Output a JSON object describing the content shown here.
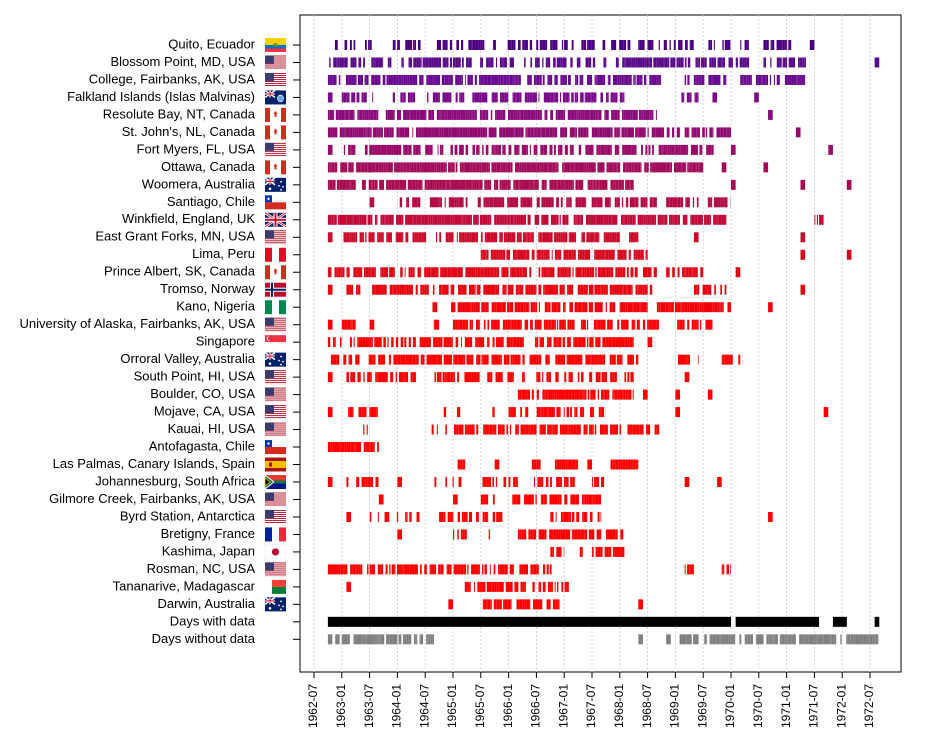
{
  "chart_data": {
    "type": "timeline",
    "xlabel": "",
    "ylabel": "",
    "x_ticks": [
      "1962-07",
      "1963-01",
      "1963-07",
      "1964-01",
      "1964-07",
      "1965-01",
      "1965-07",
      "1966-01",
      "1966-07",
      "1967-01",
      "1967-07",
      "1968-01",
      "1968-07",
      "1969-01",
      "1969-07",
      "1970-01",
      "1970-07",
      "1971-01",
      "1971-07",
      "1972-01",
      "1972-07"
    ],
    "xlim": [
      "1962-04",
      "1972-10"
    ],
    "grid": "vertical dashed",
    "rows": [
      {
        "name": "Quito, Ecuador",
        "flag": "ecuador",
        "color": "#4b0082",
        "segments": [
          [
            "1962-10",
            "1963-01"
          ],
          [
            "1963-01",
            "1963-04"
          ],
          [
            "1963-06",
            "1963-08"
          ],
          [
            "1963-12",
            "1964-02"
          ],
          [
            "1964-02",
            "1964-06"
          ],
          [
            "1964-09",
            "1968-06"
          ],
          [
            "1968-06",
            "1969-05"
          ],
          [
            "1969-05",
            "1970-01"
          ],
          [
            "1970-03",
            "1970-05"
          ],
          [
            "1970-08",
            "1971-02"
          ],
          [
            "1971-06",
            "1971-07"
          ]
        ],
        "density": 0.55
      },
      {
        "name": "Blossom Point, MD, USA",
        "flag": "usa",
        "color": "#5a0a8a",
        "segments": [
          [
            "1962-10",
            "1963-06"
          ],
          [
            "1963-06",
            "1964-07"
          ],
          [
            "1964-07",
            "1965-01"
          ],
          [
            "1965-01",
            "1967-08"
          ],
          [
            "1967-08",
            "1968-03"
          ],
          [
            "1968-03",
            "1969-08"
          ],
          [
            "1969-08",
            "1970-05"
          ],
          [
            "1970-08",
            "1971-06"
          ],
          [
            "1972-08",
            "1972-09"
          ]
        ],
        "density": 0.65
      },
      {
        "name": "College, Fairbanks, AK, USA",
        "flag": "usa",
        "color": "#6a0a90",
        "segments": [
          [
            "1962-10",
            "1968-01"
          ],
          [
            "1968-01",
            "1968-10"
          ],
          [
            "1969-03",
            "1969-12"
          ],
          [
            "1970-03",
            "1971-05"
          ]
        ],
        "density": 0.8
      },
      {
        "name": "Falkland Islands (Islas Malvinas)",
        "flag": "falklands",
        "color": "#7a0a8a",
        "segments": [
          [
            "1962-10",
            "1962-11"
          ],
          [
            "1963-01",
            "1963-09"
          ],
          [
            "1963-12",
            "1964-06"
          ],
          [
            "1964-07",
            "1965-01"
          ],
          [
            "1965-01",
            "1968-02"
          ],
          [
            "1969-01",
            "1969-06"
          ],
          [
            "1969-09",
            "1969-10"
          ],
          [
            "1970-06",
            "1970-07"
          ]
        ],
        "density": 0.7
      },
      {
        "name": "Resolute Bay, NT, Canada",
        "flag": "canada",
        "color": "#8a0a7a",
        "segments": [
          [
            "1962-10",
            "1968-09"
          ],
          [
            "1970-09",
            "1970-10"
          ]
        ],
        "density": 0.85
      },
      {
        "name": "St. John's, NL, Canada",
        "flag": "canada",
        "color": "#900a70",
        "segments": [
          [
            "1962-10",
            "1969-02"
          ],
          [
            "1969-03",
            "1970-01"
          ],
          [
            "1971-03",
            "1971-04"
          ]
        ],
        "density": 0.85
      },
      {
        "name": "Fort Myers, FL, USA",
        "flag": "usa",
        "color": "#9a0a68",
        "segments": [
          [
            "1962-10",
            "1962-11"
          ],
          [
            "1963-01",
            "1963-04"
          ],
          [
            "1963-06",
            "1964-06"
          ],
          [
            "1964-07",
            "1965-01"
          ],
          [
            "1965-01",
            "1968-08"
          ],
          [
            "1968-08",
            "1969-10"
          ],
          [
            "1970-01",
            "1970-02"
          ],
          [
            "1971-10",
            "1971-11"
          ]
        ],
        "density": 0.75
      },
      {
        "name": "Ottawa, Canada",
        "flag": "canada",
        "color": "#a20a5a",
        "segments": [
          [
            "1962-10",
            "1969-07"
          ],
          [
            "1969-11",
            "1969-12"
          ],
          [
            "1970-08",
            "1970-09"
          ]
        ],
        "density": 0.9
      },
      {
        "name": "Woomera, Australia",
        "flag": "australia",
        "color": "#aa0a50",
        "segments": [
          [
            "1962-10",
            "1967-08"
          ],
          [
            "1967-08",
            "1968-04"
          ],
          [
            "1970-01",
            "1970-02"
          ],
          [
            "1971-04",
            "1971-05"
          ],
          [
            "1972-02",
            "1972-03"
          ]
        ],
        "density": 0.8
      },
      {
        "name": "Santiago, Chile",
        "flag": "chile",
        "color": "#b40a45",
        "segments": [
          [
            "1963-07",
            "1963-08"
          ],
          [
            "1964-01",
            "1964-06"
          ],
          [
            "1964-08",
            "1965-01"
          ],
          [
            "1965-01",
            "1968-09"
          ],
          [
            "1968-11",
            "1969-06"
          ],
          [
            "1969-08",
            "1970-01"
          ]
        ],
        "density": 0.75
      },
      {
        "name": "Winkfield, England, UK",
        "flag": "uk",
        "color": "#c00a38",
        "segments": [
          [
            "1962-10",
            "1969-12"
          ],
          [
            "1971-07",
            "1971-09"
          ]
        ],
        "density": 0.85
      },
      {
        "name": "East Grant Forks, MN, USA",
        "flag": "usa",
        "color": "#cc0a2a",
        "segments": [
          [
            "1962-10",
            "1962-11"
          ],
          [
            "1963-01",
            "1968-01"
          ],
          [
            "1968-03",
            "1968-05"
          ],
          [
            "1969-05",
            "1969-06"
          ],
          [
            "1971-04",
            "1971-05"
          ]
        ],
        "density": 0.75
      },
      {
        "name": "Lima, Peru",
        "flag": "peru",
        "color": "#d8081f",
        "segments": [
          [
            "1965-07",
            "1967-09"
          ],
          [
            "1967-09",
            "1968-07"
          ],
          [
            "1971-04",
            "1971-05"
          ],
          [
            "1972-02",
            "1972-03"
          ]
        ],
        "density": 0.8
      },
      {
        "name": "Prince Albert, SK, Canada",
        "flag": "canada",
        "color": "#e00616",
        "segments": [
          [
            "1962-10",
            "1968-09"
          ],
          [
            "1968-11",
            "1969-07"
          ],
          [
            "1970-02",
            "1970-03"
          ]
        ],
        "density": 0.8
      },
      {
        "name": "Tromso, Norway",
        "flag": "norway",
        "color": "#e8050f",
        "segments": [
          [
            "1962-10",
            "1962-11"
          ],
          [
            "1963-02",
            "1963-05"
          ],
          [
            "1963-07",
            "1964-09"
          ],
          [
            "1964-10",
            "1968-08"
          ],
          [
            "1969-05",
            "1969-12"
          ],
          [
            "1971-04",
            "1971-05"
          ]
        ],
        "density": 0.75
      },
      {
        "name": "Kano, Nigeria",
        "flag": "nigeria",
        "color": "#f0040a",
        "segments": [
          [
            "1964-08",
            "1964-10"
          ],
          [
            "1964-12",
            "1968-07"
          ],
          [
            "1968-09",
            "1970-01"
          ],
          [
            "1970-09",
            "1970-10"
          ]
        ],
        "density": 0.8
      },
      {
        "name": "University of Alaska, Fairbanks, AK, USA",
        "flag": "usa",
        "color": "#f80306",
        "segments": [
          [
            "1962-10",
            "1962-11"
          ],
          [
            "1963-01",
            "1963-04"
          ],
          [
            "1963-07",
            "1963-08"
          ],
          [
            "1964-08",
            "1964-10"
          ],
          [
            "1965-01",
            "1968-10"
          ],
          [
            "1969-01",
            "1969-09"
          ]
        ],
        "density": 0.75
      },
      {
        "name": "Singapore",
        "flag": "singapore",
        "color": "#ff0000",
        "segments": [
          [
            "1962-10",
            "1968-04"
          ],
          [
            "1968-07",
            "1968-08"
          ]
        ],
        "density": 0.7
      },
      {
        "name": "Orroral Valley, Australia",
        "flag": "australia",
        "color": "#ff0000",
        "segments": [
          [
            "1962-10",
            "1968-05"
          ],
          [
            "1969-01",
            "1969-06"
          ],
          [
            "1969-11",
            "1970-03"
          ]
        ],
        "density": 0.7
      },
      {
        "name": "South Point, HI, USA",
        "flag": "usa",
        "color": "#ff0000",
        "segments": [
          [
            "1962-10",
            "1962-11"
          ],
          [
            "1963-02",
            "1964-05"
          ],
          [
            "1964-09",
            "1966-05"
          ],
          [
            "1966-07",
            "1968-04"
          ],
          [
            "1969-03",
            "1969-04"
          ]
        ],
        "density": 0.55
      },
      {
        "name": "Boulder, CO, USA",
        "flag": "usa",
        "color": "#ff0000",
        "segments": [
          [
            "1966-03",
            "1968-04"
          ],
          [
            "1968-06",
            "1968-07"
          ],
          [
            "1969-01",
            "1969-02"
          ],
          [
            "1969-08",
            "1969-09"
          ]
        ],
        "density": 0.75
      },
      {
        "name": "Mojave, CA, USA",
        "flag": "usa",
        "color": "#ff0000",
        "segments": [
          [
            "1962-10",
            "1962-11"
          ],
          [
            "1963-02",
            "1963-09"
          ],
          [
            "1964-11",
            "1965-03"
          ],
          [
            "1965-08",
            "1965-10"
          ],
          [
            "1966-01",
            "1967-10"
          ],
          [
            "1969-01",
            "1969-02"
          ],
          [
            "1971-09",
            "1971-10"
          ]
        ],
        "density": 0.55
      },
      {
        "name": "Kauai, HI, USA",
        "flag": "usa",
        "color": "#ff0000",
        "segments": [
          [
            "1963-05",
            "1963-07"
          ],
          [
            "1964-08",
            "1968-10"
          ]
        ],
        "density": 0.7
      },
      {
        "name": "Antofagasta, Chile",
        "flag": "chile",
        "color": "#ff0000",
        "segments": [
          [
            "1962-10",
            "1963-09"
          ]
        ],
        "density": 0.8
      },
      {
        "name": "Las Palmas, Canary Islands, Spain",
        "flag": "spain",
        "color": "#ff0000",
        "segments": [
          [
            "1965-02",
            "1965-04"
          ],
          [
            "1965-10",
            "1965-11"
          ],
          [
            "1966-06",
            "1966-08"
          ],
          [
            "1966-11",
            "1967-04"
          ],
          [
            "1967-06",
            "1967-07"
          ],
          [
            "1967-11",
            "1968-05"
          ]
        ],
        "density": 0.85
      },
      {
        "name": "Johannesburg, South Africa",
        "flag": "south_africa",
        "color": "#ff0000",
        "segments": [
          [
            "1962-10",
            "1962-11"
          ],
          [
            "1963-02",
            "1963-09"
          ],
          [
            "1964-01",
            "1964-02"
          ],
          [
            "1964-09",
            "1965-03"
          ],
          [
            "1965-07",
            "1966-03"
          ],
          [
            "1966-06",
            "1967-04"
          ],
          [
            "1967-07",
            "1967-10"
          ],
          [
            "1969-03",
            "1969-04"
          ],
          [
            "1969-10",
            "1969-11"
          ]
        ],
        "density": 0.55
      },
      {
        "name": "Gilmore Creek, Fairbanks, AK, USA",
        "flag": "usa",
        "color": "#ff0000",
        "segments": [
          [
            "1963-09",
            "1963-10"
          ],
          [
            "1965-01",
            "1965-02"
          ],
          [
            "1965-07",
            "1965-10"
          ],
          [
            "1966-01",
            "1967-09"
          ]
        ],
        "density": 0.7
      },
      {
        "name": "Byrd Station, Antarctica",
        "flag": "usa",
        "color": "#ff0000",
        "segments": [
          [
            "1963-02",
            "1963-03"
          ],
          [
            "1963-06",
            "1964-08"
          ],
          [
            "1964-10",
            "1965-12"
          ],
          [
            "1966-10",
            "1967-09"
          ],
          [
            "1970-09",
            "1970-10"
          ]
        ],
        "density": 0.55
      },
      {
        "name": "Bretigny, France",
        "flag": "france",
        "color": "#ff0000",
        "segments": [
          [
            "1964-01",
            "1964-02"
          ],
          [
            "1965-01",
            "1965-04"
          ],
          [
            "1965-07",
            "1965-09"
          ],
          [
            "1966-03",
            "1967-09"
          ],
          [
            "1967-10",
            "1968-02"
          ]
        ],
        "density": 0.65
      },
      {
        "name": "Kashima, Japan",
        "flag": "japan",
        "color": "#ff0000",
        "segments": [
          [
            "1966-10",
            "1967-01"
          ],
          [
            "1967-03",
            "1967-05"
          ],
          [
            "1967-07",
            "1968-02"
          ]
        ],
        "density": 0.75
      },
      {
        "name": "Rosman, NC, USA",
        "flag": "usa",
        "color": "#ff0000",
        "segments": [
          [
            "1962-10",
            "1966-11"
          ],
          [
            "1969-03",
            "1969-05"
          ],
          [
            "1969-11",
            "1970-01"
          ]
        ],
        "density": 0.7
      },
      {
        "name": "Tananarive, Madagascar",
        "flag": "madagascar",
        "color": "#ff0000",
        "segments": [
          [
            "1963-02",
            "1963-03"
          ],
          [
            "1965-03",
            "1967-02"
          ]
        ],
        "density": 0.6
      },
      {
        "name": "Darwin, Australia",
        "flag": "australia",
        "color": "#ff0000",
        "segments": [
          [
            "1964-12",
            "1965-01"
          ],
          [
            "1965-06",
            "1966-12"
          ],
          [
            "1968-05",
            "1968-06"
          ]
        ],
        "density": 0.55
      },
      {
        "name": "Days with data",
        "flag": "",
        "color": "#000000",
        "segments": [
          [
            "1962-10",
            "1970-01"
          ],
          [
            "1970-02",
            "1971-08"
          ],
          [
            "1971-11",
            "1972-02"
          ],
          [
            "1972-08",
            "1972-09"
          ]
        ],
        "density": 0.97
      },
      {
        "name": "Days without data",
        "flag": "",
        "color": "#808080",
        "segments": [
          [
            "1962-10",
            "1964-09"
          ],
          [
            "1968-05",
            "1968-06"
          ],
          [
            "1968-11",
            "1968-12"
          ],
          [
            "1969-01",
            "1969-06"
          ],
          [
            "1969-07",
            "1972-09"
          ]
        ],
        "density": 0.75
      }
    ]
  }
}
